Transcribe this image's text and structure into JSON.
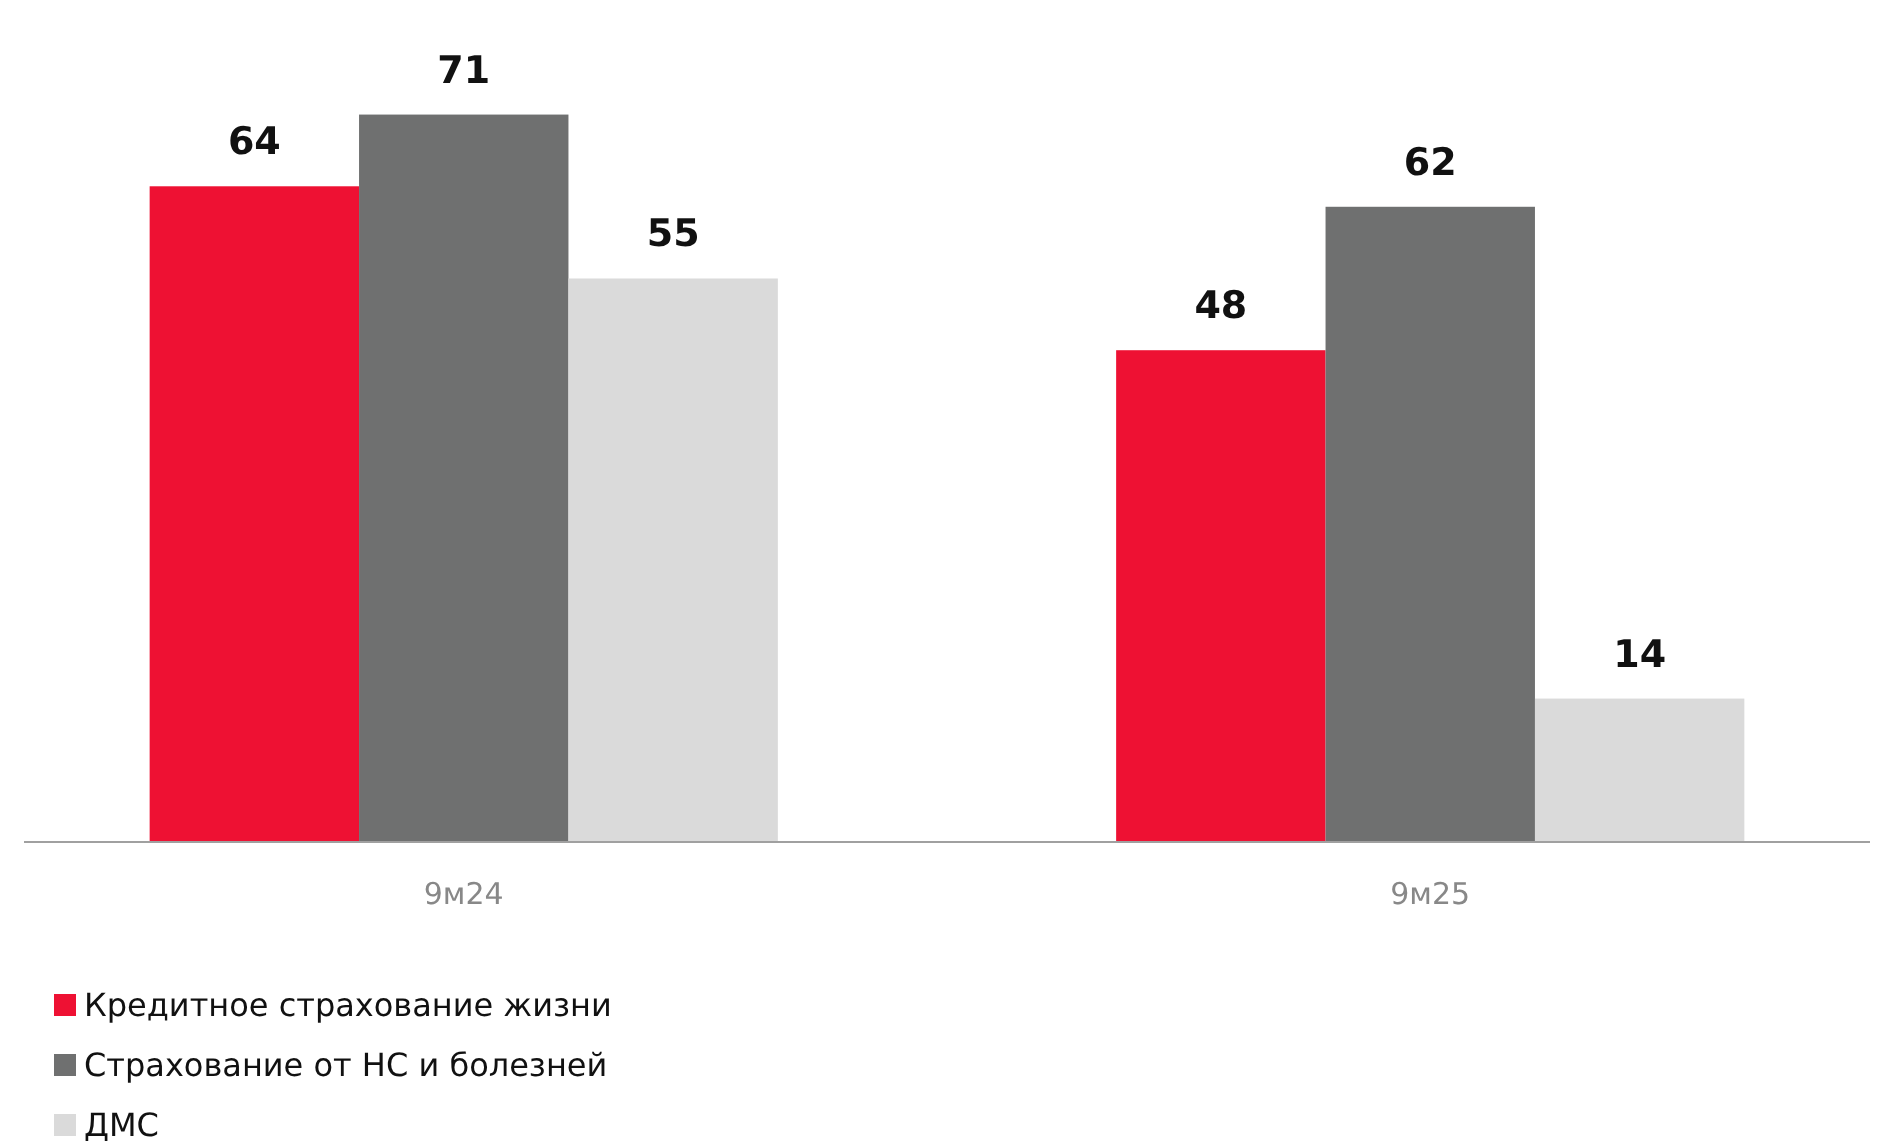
{
  "chart_data": {
    "type": "bar",
    "categories": [
      "9м24",
      "9м25"
    ],
    "series": [
      {
        "name": "Кредитное страхование жизни",
        "color": "#ee1133",
        "values": [
          64,
          48
        ]
      },
      {
        "name": "Страхование от НС и болезней",
        "color": "#6f7070",
        "values": [
          71,
          62
        ]
      },
      {
        "name": "ДМС",
        "color": "#dadada",
        "values": [
          55,
          14
        ]
      }
    ],
    "data_labels": true,
    "legend": "bottom"
  }
}
